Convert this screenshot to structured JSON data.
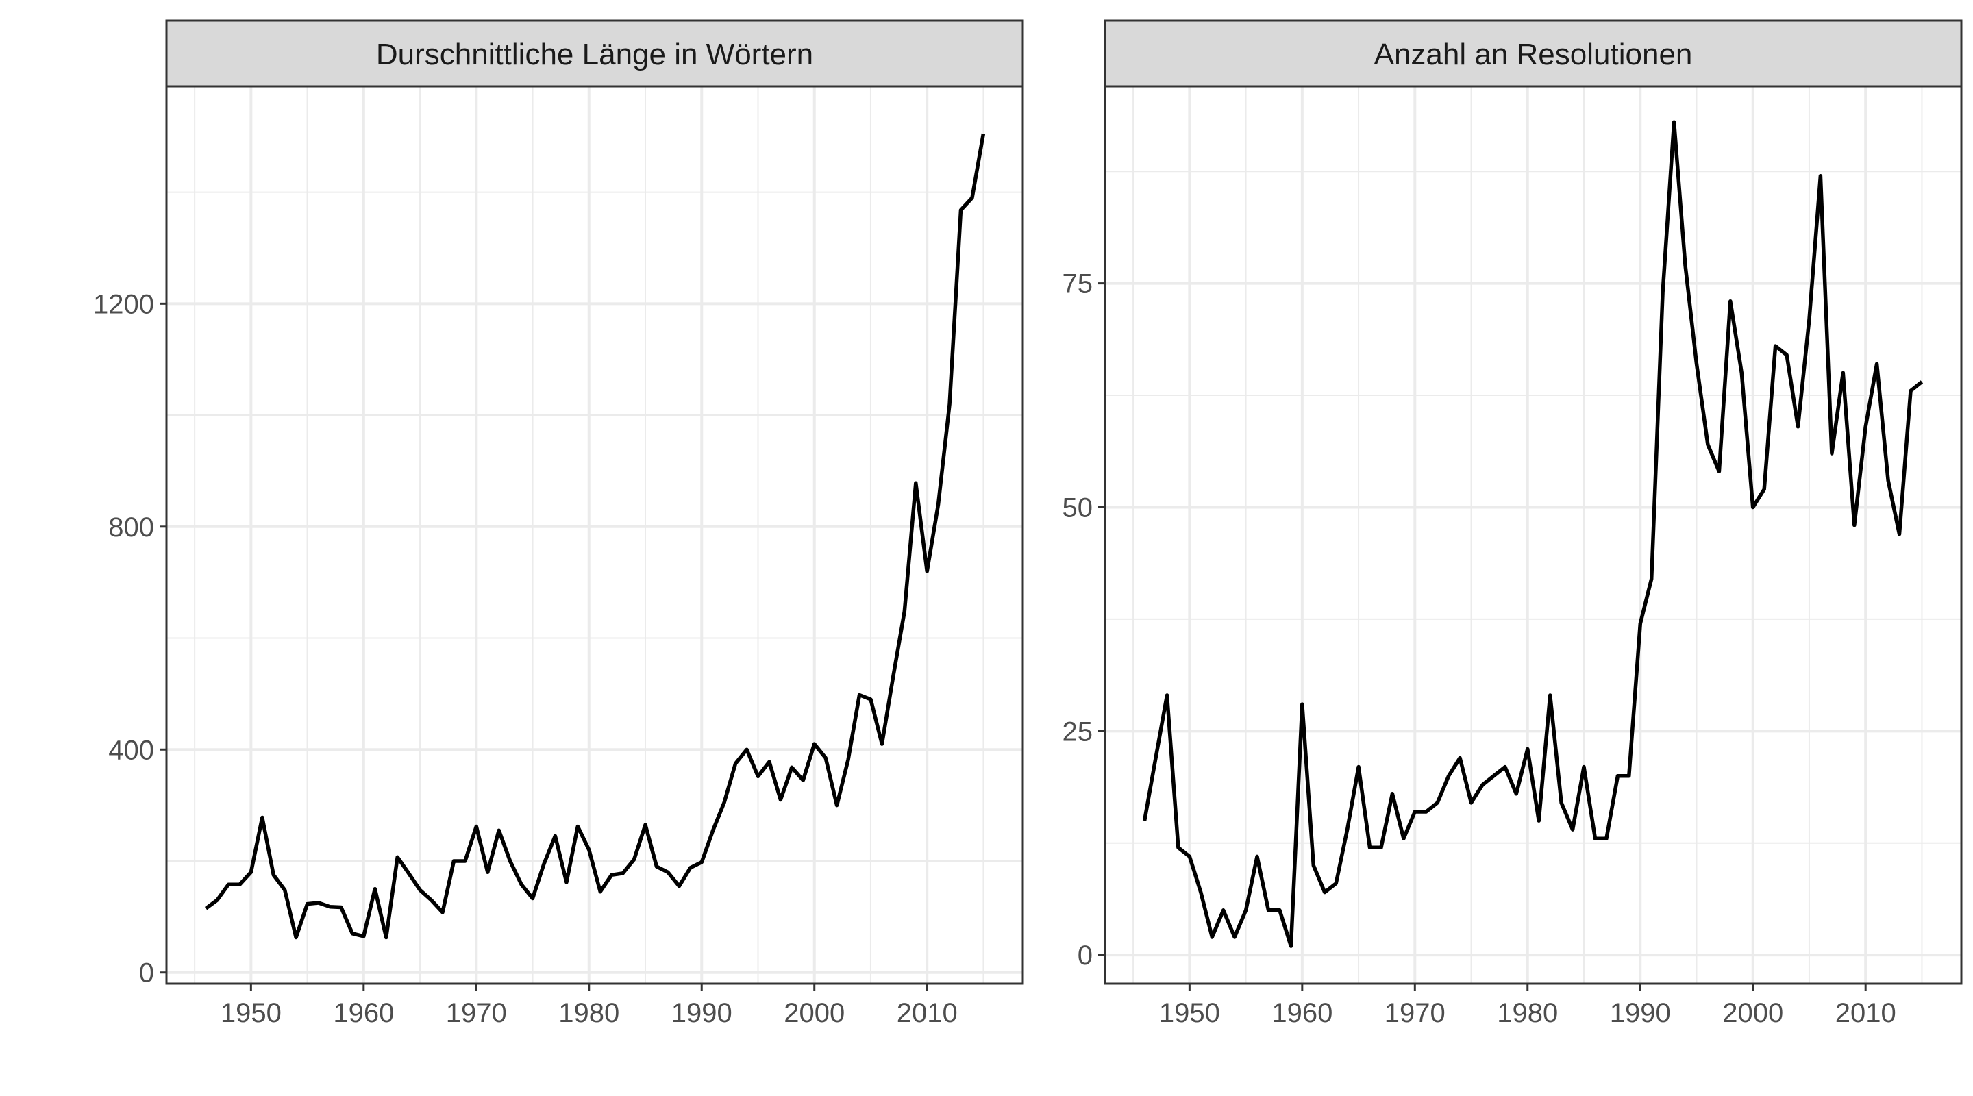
{
  "chart_data": [
    {
      "type": "line",
      "title": "Durschnittliche Länge in Wörtern",
      "xlabel": "",
      "ylabel": "",
      "xlim": [
        1942.5,
        2018.5
      ],
      "ylim": [
        -20,
        1590
      ],
      "xticks": [
        1950,
        1960,
        1970,
        1980,
        1990,
        2000,
        2010
      ],
      "yticks": [
        0,
        400,
        800,
        1200
      ],
      "xtick_labels": [
        "1950",
        "1960",
        "1970",
        "1980",
        "1990",
        "2000",
        "2010"
      ],
      "ytick_labels": [
        "0",
        "400",
        "800",
        "1200"
      ],
      "grid": true,
      "x": [
        1946,
        1947,
        1948,
        1949,
        1950,
        1951,
        1952,
        1953,
        1954,
        1955,
        1956,
        1957,
        1958,
        1959,
        1960,
        1961,
        1962,
        1963,
        1964,
        1965,
        1966,
        1967,
        1968,
        1969,
        1970,
        1971,
        1972,
        1973,
        1974,
        1975,
        1976,
        1977,
        1978,
        1979,
        1980,
        1981,
        1982,
        1983,
        1984,
        1985,
        1986,
        1987,
        1988,
        1989,
        1990,
        1991,
        1992,
        1993,
        1994,
        1995,
        1996,
        1997,
        1998,
        1999,
        2000,
        2001,
        2002,
        2003,
        2004,
        2005,
        2006,
        2007,
        2008,
        2009,
        2010,
        2011,
        2012,
        2013,
        2014,
        2015
      ],
      "y": [
        115,
        130,
        158,
        158,
        180,
        278,
        175,
        148,
        63,
        123,
        125,
        118,
        117,
        70,
        65,
        150,
        63,
        207,
        178,
        148,
        130,
        108,
        200,
        200,
        262,
        180,
        255,
        200,
        158,
        133,
        195,
        245,
        162,
        262,
        220,
        145,
        175,
        178,
        203,
        265,
        190,
        180,
        155,
        188,
        198,
        255,
        305,
        375,
        400,
        352,
        378,
        310,
        368,
        345,
        410,
        385,
        300,
        382,
        498,
        490,
        410,
        532,
        648,
        878,
        720,
        840,
        1020,
        1368,
        1390,
        1505
      ]
    },
    {
      "type": "line",
      "title": "Anzahl an Resolutionen",
      "xlabel": "",
      "ylabel": "",
      "xlim": [
        1942.5,
        2018.5
      ],
      "ylim": [
        -3.2,
        97
      ],
      "xticks": [
        1950,
        1960,
        1970,
        1980,
        1990,
        2000,
        2010
      ],
      "yticks": [
        0,
        25,
        50,
        75
      ],
      "xtick_labels": [
        "1950",
        "1960",
        "1970",
        "1980",
        "1990",
        "2000",
        "2010"
      ],
      "ytick_labels": [
        "0",
        "25",
        "50",
        "75"
      ],
      "grid": true,
      "x": [
        1946,
        1947,
        1948,
        1949,
        1950,
        1951,
        1952,
        1953,
        1954,
        1955,
        1956,
        1957,
        1958,
        1959,
        1960,
        1961,
        1962,
        1963,
        1964,
        1965,
        1966,
        1967,
        1968,
        1969,
        1970,
        1971,
        1972,
        1973,
        1974,
        1975,
        1976,
        1977,
        1978,
        1979,
        1980,
        1981,
        1982,
        1983,
        1984,
        1985,
        1986,
        1987,
        1988,
        1989,
        1990,
        1991,
        1992,
        1993,
        1994,
        1995,
        1996,
        1997,
        1998,
        1999,
        2000,
        2001,
        2002,
        2003,
        2004,
        2005,
        2006,
        2007,
        2008,
        2009,
        2010,
        2011,
        2012,
        2013,
        2014,
        2015
      ],
      "y": [
        15,
        22,
        29,
        12,
        11,
        7,
        2,
        5,
        2,
        5,
        11,
        5,
        5,
        1,
        28,
        10,
        7,
        8,
        14,
        21,
        12,
        12,
        18,
        13,
        16,
        16,
        17,
        20,
        22,
        17,
        19,
        20,
        21,
        18,
        23,
        15,
        29,
        17,
        14,
        21,
        13,
        13,
        20,
        20,
        37,
        42,
        74,
        93,
        77,
        66,
        57,
        54,
        73,
        65,
        50,
        52,
        68,
        67,
        59,
        71,
        87,
        56,
        65,
        48,
        59,
        66,
        53,
        47,
        63,
        64
      ]
    }
  ]
}
